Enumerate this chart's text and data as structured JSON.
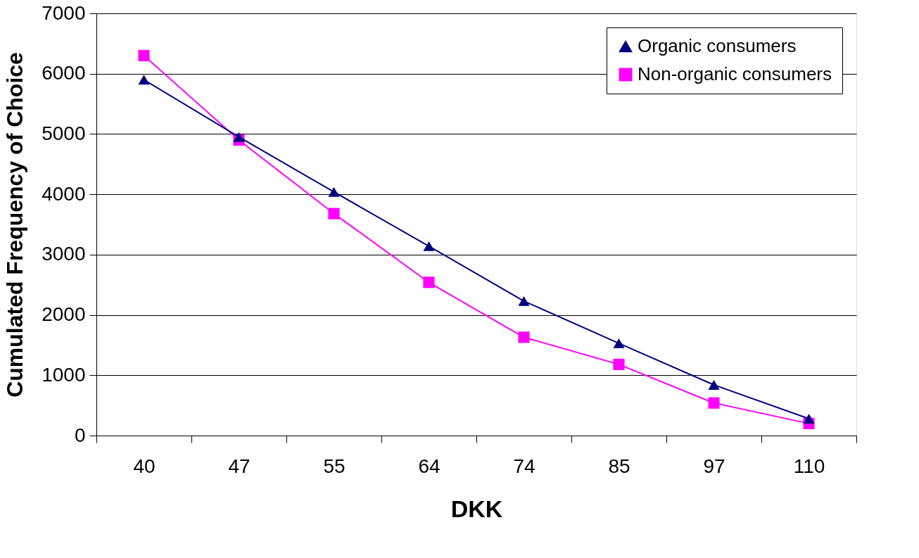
{
  "chart_data": {
    "type": "line",
    "xlabel": "DKK",
    "ylabel": "Cumulated Frequency of Choice",
    "categories": [
      "40",
      "47",
      "55",
      "64",
      "74",
      "85",
      "97",
      "110"
    ],
    "series": [
      {
        "name": "Organic consumers",
        "color": "#000080",
        "marker": "triangle",
        "values": [
          5900,
          4950,
          4040,
          3140,
          2230,
          1530,
          840,
          280
        ]
      },
      {
        "name": "Non-organic consumers",
        "color": "#ff00ff",
        "marker": "square",
        "values": [
          6300,
          4900,
          3680,
          2540,
          1630,
          1180,
          540,
          200
        ]
      }
    ],
    "ylim": [
      0,
      7000
    ],
    "yticks": [
      0,
      1000,
      2000,
      3000,
      4000,
      5000,
      6000,
      7000
    ],
    "grid": "y",
    "legend": "top right",
    "line_style": "solid"
  }
}
